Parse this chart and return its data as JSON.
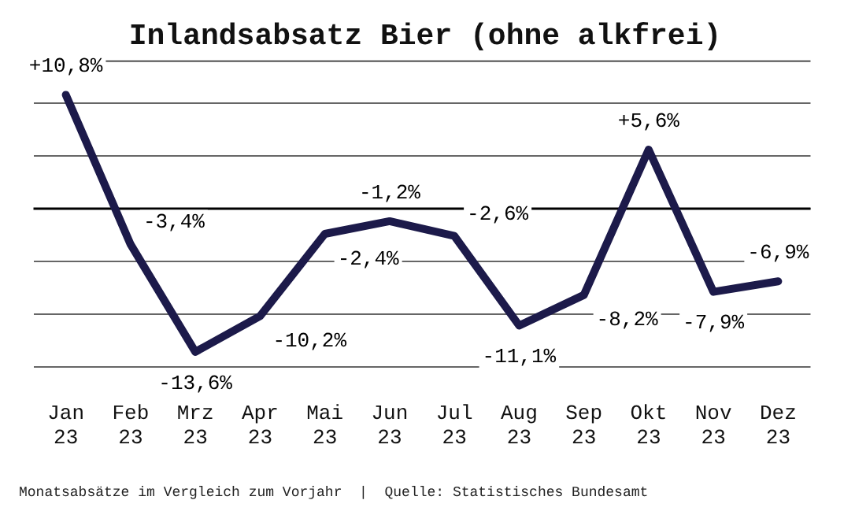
{
  "chart_data": {
    "type": "line",
    "title": "Inlandsabsatz Bier (ohne alkfrei)",
    "categories": [
      "Jan 23",
      "Feb 23",
      "Mrz 23",
      "Apr 23",
      "Mai 23",
      "Jun 23",
      "Jul 23",
      "Aug 23",
      "Sep 23",
      "Okt 23",
      "Nov 23",
      "Dez 23"
    ],
    "series": [
      {
        "color": "#1c1a4a",
        "values": [
          10.8,
          -3.4,
          -13.6,
          -10.2,
          -2.4,
          -1.2,
          -2.6,
          -11.1,
          -8.2,
          5.6,
          -7.9,
          -6.9
        ],
        "value_labels": [
          "+10,8%",
          "-3,4%",
          "-13,6%",
          "-10,2%",
          "-2,4%",
          "-1,2%",
          "-2,6%",
          "-11,1%",
          "-8,2%",
          "+5,6%",
          "-7,9%",
          "-6,9%"
        ]
      }
    ],
    "ylim": [
      -15,
      14
    ],
    "yticks": [
      -15,
      -10,
      -5,
      0,
      5,
      10
    ],
    "tick_labels": "x",
    "grid": "y",
    "marker": "none",
    "line_style": "solid",
    "ref_lines": [
      {
        "axis": "y",
        "value": 0,
        "color": "#000000"
      }
    ],
    "annotations": [
      "Monatsabsätze im Vergleich zum Vorjahr  |  Quelle: Statistisches Bundesamt"
    ]
  }
}
